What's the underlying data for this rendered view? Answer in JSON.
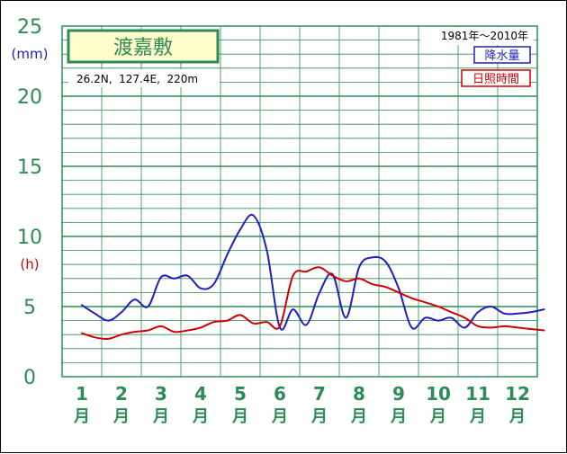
{
  "chart_data": {
    "type": "line",
    "title": "渡嘉敷",
    "location": "26.2N,  127.4E,  220m",
    "period": "1981年〜2010年",
    "y_ticks": [
      "0",
      "5",
      "10",
      "15",
      "20",
      "25"
    ],
    "ylim": [
      0,
      25
    ],
    "unit_precip": "(mm)",
    "unit_sun": "(h)",
    "month_numbers": [
      "1",
      "2",
      "3",
      "4",
      "5",
      "6",
      "7",
      "8",
      "9",
      "10",
      "11",
      "12"
    ],
    "month_suffix": "月",
    "legend_precip": "降水量",
    "legend_sun": "日照時間",
    "grid": true,
    "colors": {
      "precip": "#1f1fbf",
      "sun": "#d00000",
      "grid": "#2e8b57",
      "title_bg": "#ffffcc"
    },
    "series": [
      {
        "name": "降水量",
        "x": [
          1.0,
          1.33,
          1.67,
          2.0,
          2.33,
          2.67,
          3.0,
          3.33,
          3.67,
          4.0,
          4.33,
          4.67,
          5.0,
          5.33,
          5.67,
          6.0,
          6.33,
          6.67,
          7.0,
          7.33,
          7.67,
          8.0,
          8.33,
          8.67,
          9.0,
          9.33,
          9.67,
          10.0,
          10.33,
          10.67,
          11.0,
          11.33,
          11.67,
          12.0,
          12.33,
          12.67
        ],
        "values": [
          5.1,
          4.5,
          4.0,
          4.6,
          5.5,
          5.0,
          7.1,
          7.0,
          7.2,
          6.3,
          6.6,
          8.7,
          10.5,
          11.5,
          9.0,
          3.5,
          4.8,
          3.7,
          6.0,
          7.3,
          4.2,
          7.8,
          8.5,
          8.2,
          6.3,
          3.5,
          4.2,
          4.0,
          4.2,
          3.5,
          4.6,
          5.0,
          4.5,
          4.5,
          4.6,
          4.8
        ]
      },
      {
        "name": "日照時間",
        "x": [
          1.0,
          1.33,
          1.67,
          2.0,
          2.33,
          2.67,
          3.0,
          3.33,
          3.67,
          4.0,
          4.33,
          4.67,
          5.0,
          5.33,
          5.67,
          6.0,
          6.33,
          6.67,
          7.0,
          7.33,
          7.67,
          8.0,
          8.33,
          8.67,
          9.0,
          9.33,
          9.67,
          10.0,
          10.33,
          10.67,
          11.0,
          11.33,
          11.67,
          12.0,
          12.33,
          12.67
        ],
        "values": [
          3.1,
          2.8,
          2.7,
          3.0,
          3.2,
          3.3,
          3.6,
          3.2,
          3.3,
          3.5,
          3.9,
          4.0,
          4.4,
          3.8,
          3.9,
          3.6,
          7.2,
          7.5,
          7.8,
          7.2,
          6.8,
          7.0,
          6.6,
          6.4,
          6.0,
          5.6,
          5.3,
          5.0,
          4.6,
          4.2,
          3.6,
          3.5,
          3.6,
          3.5,
          3.4,
          3.3
        ]
      }
    ]
  }
}
